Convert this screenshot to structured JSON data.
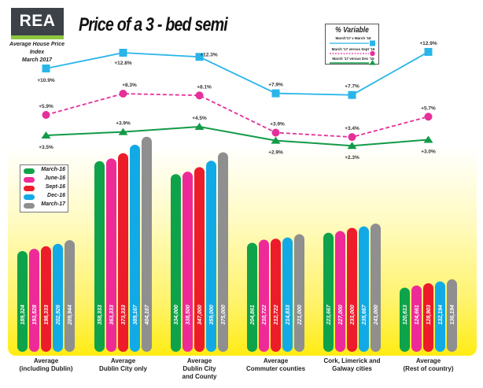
{
  "header": {
    "logo": "REA",
    "subtitle_line1": "Average House Price Index",
    "subtitle_line2": "March 2017",
    "title": "Price of a 3 - bed semi"
  },
  "colors": {
    "march16": "#0ea34a",
    "june16": "#ee2a98",
    "sept16": "#ec1c2b",
    "dec16": "#12aae6",
    "march17": "#8f8f8f",
    "line_yoy": "#29b5e8",
    "line_sept": "#e5309a",
    "line_dec": "#139a48",
    "panel_yellow": "#fff22a"
  },
  "chart_data": [
    {
      "type": "bar",
      "title": "Price of a 3 - bed semi",
      "xlabel": "",
      "ylabel": "",
      "categories": [
        "Average (including Dublin)",
        "Average Dublin City only",
        "Average Dublin City and County",
        "Average Commuter counties",
        "Cork, Limerick and Galway cities",
        "Average (Rest of country)"
      ],
      "category_lines": [
        [
          "Average",
          "(including Dublin)"
        ],
        [
          "Average",
          "Dublin City only"
        ],
        [
          "Average",
          "Dublin City",
          "and County"
        ],
        [
          "Average",
          "Commuter counties"
        ],
        [
          "Cork, Limerick and",
          "Galway cities"
        ],
        [
          "Average",
          "(Rest of country)"
        ]
      ],
      "series": [
        {
          "name": "March-16",
          "color_key": "march16",
          "values": [
            189324,
            358333,
            334000,
            204861,
            223667,
            120613
          ],
          "labels": [
            "189,324",
            "358,333",
            "334,000",
            "204,861",
            "223,667",
            "120,613"
          ]
        },
        {
          "name": "June-16",
          "color_key": "june16",
          "values": [
            193528,
            363333,
            338500,
            210722,
            227000,
            124661
          ],
          "labels": [
            "193,528",
            "363,333",
            "338,500",
            "210,722",
            "227,000",
            "124,661"
          ]
        },
        {
          "name": "Sept-16",
          "color_key": "sept16",
          "values": [
            198333,
            373333,
            347000,
            212722,
            233000,
            128903
          ],
          "labels": [
            "198,333",
            "373,333",
            "347,000",
            "212,722",
            "233,000",
            "128,903"
          ]
        },
        {
          "name": "Dec-16",
          "color_key": "dec16",
          "values": [
            202926,
            389167,
            359000,
            214833,
            235667,
            132194
          ],
          "labels": [
            "202,926",
            "389,167",
            "359,000",
            "214,833",
            "235,667",
            "132,194"
          ]
        },
        {
          "name": "March-17",
          "color_key": "march17",
          "values": [
            209944,
            404167,
            375000,
            221000,
            241000,
            136194
          ],
          "labels": [
            "209,944",
            "404,167",
            "375,000",
            "221,000",
            "241,000",
            "136,194"
          ]
        }
      ],
      "legend": "left",
      "grid": false
    },
    {
      "type": "line",
      "title": "% Variable",
      "categories": [
        "Average (including Dublin)",
        "Average Dublin City only",
        "Average Dublin City and County",
        "Average Commuter counties",
        "Cork, Limerick and Galway cities",
        "Average (Rest of country)"
      ],
      "series": [
        {
          "name": "March'17 v March '16",
          "color_key": "line_yoy",
          "marker": "square",
          "dashed": false,
          "values": [
            10.9,
            12.8,
            12.3,
            7.9,
            7.7,
            12.9
          ],
          "labels": [
            "+10.9%",
            "+12.8%",
            "+12.3%",
            "+7.9%",
            "+7.7%",
            "+12.9%"
          ]
        },
        {
          "name": "March '17 versus Sept '16",
          "color_key": "line_sept",
          "marker": "circle",
          "dashed": true,
          "values": [
            5.9,
            8.3,
            8.1,
            3.9,
            3.4,
            5.7
          ],
          "labels": [
            "+5.9%",
            "+8.3%",
            "+8.1%",
            "+3.9%",
            "+3.4%",
            "+5.7%"
          ]
        },
        {
          "name": "March '17 versus Dec '16",
          "color_key": "line_dec",
          "marker": "triangle",
          "dashed": false,
          "values": [
            3.5,
            3.9,
            4.5,
            2.9,
            2.3,
            3.0
          ],
          "labels": [
            "+3.5%",
            "+3.9%",
            "+4.5%",
            "+2.9%",
            "+2.3%",
            "+3.0%"
          ]
        }
      ],
      "legend": "top-right"
    }
  ]
}
